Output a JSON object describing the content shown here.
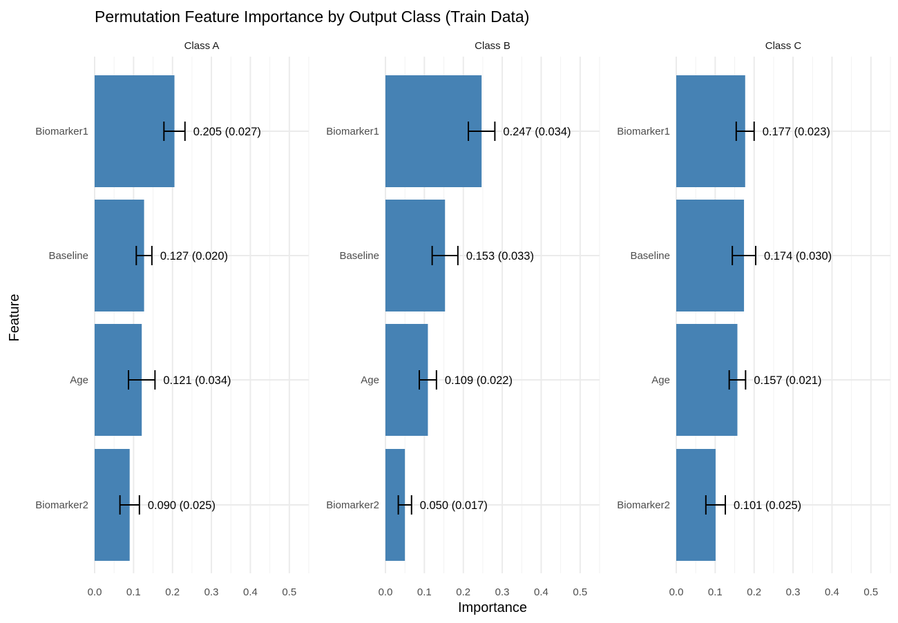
{
  "chart_data": {
    "type": "bar",
    "orientation": "horizontal",
    "title": "Permutation Feature Importance by Output Class (Train Data)",
    "xlabel": "Importance",
    "ylabel": "Feature",
    "xlim": [
      0,
      0.55
    ],
    "xticks": [
      0,
      0.1,
      0.2,
      0.3,
      0.4,
      0.5
    ],
    "xtick_labels": [
      "0.0",
      "0.1",
      "0.2",
      "0.3",
      "0.4",
      "0.5"
    ],
    "grid": true,
    "legend": "none",
    "bar_color": "#4682b4",
    "categories": [
      "Biomarker1",
      "Baseline",
      "Age",
      "Biomarker2"
    ],
    "panels": [
      {
        "name": "Class A",
        "values": [
          0.205,
          0.127,
          0.121,
          0.09
        ],
        "errors": [
          0.027,
          0.02,
          0.034,
          0.025
        ],
        "labels": [
          "0.205 (0.027)",
          "0.127 (0.020)",
          "0.121 (0.034)",
          "0.090 (0.025)"
        ]
      },
      {
        "name": "Class B",
        "values": [
          0.247,
          0.153,
          0.109,
          0.05
        ],
        "errors": [
          0.034,
          0.033,
          0.022,
          0.017
        ],
        "labels": [
          "0.247 (0.034)",
          "0.153 (0.033)",
          "0.109 (0.022)",
          "0.050 (0.017)"
        ]
      },
      {
        "name": "Class C",
        "values": [
          0.177,
          0.174,
          0.157,
          0.101
        ],
        "errors": [
          0.023,
          0.03,
          0.021,
          0.025
        ],
        "labels": [
          "0.177 (0.023)",
          "0.174 (0.030)",
          "0.157 (0.021)",
          "0.101 (0.025)"
        ]
      }
    ]
  }
}
